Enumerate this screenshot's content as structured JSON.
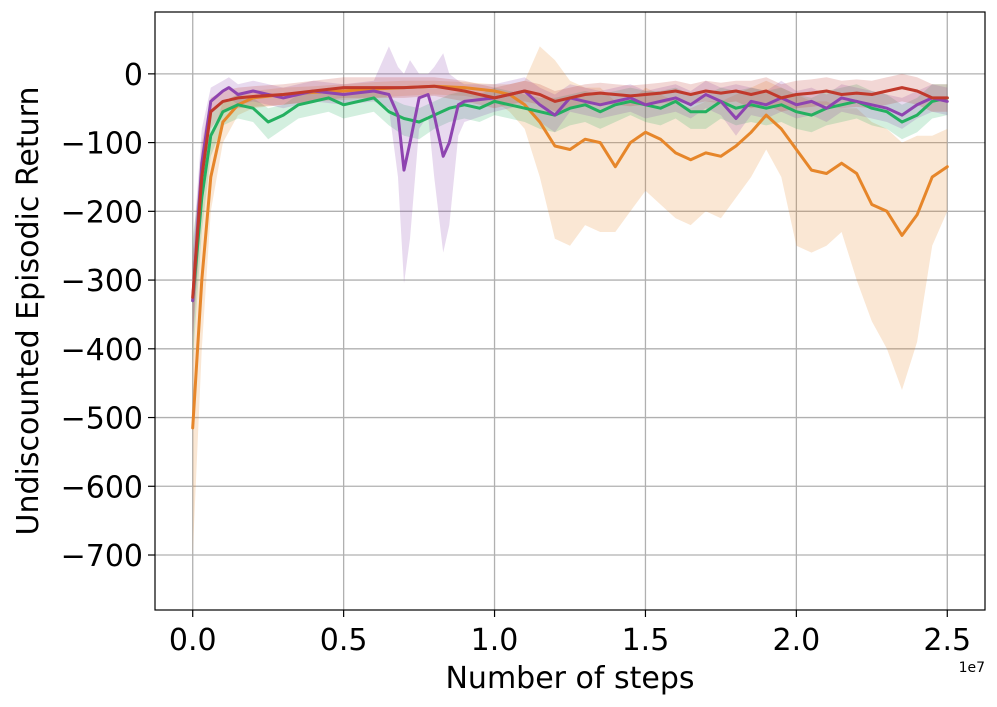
{
  "chart_data": {
    "type": "line",
    "xlabel": "Number of steps",
    "ylabel": "Undiscounted Episodic Return",
    "x_offset_label": "1e7",
    "xlim": [
      -0.125,
      2.625
    ],
    "ylim": [
      -780,
      90
    ],
    "xticks": [
      0.0,
      0.5,
      1.0,
      1.5,
      2.0,
      2.5
    ],
    "xtick_labels": [
      "0.0",
      "0.5",
      "1.0",
      "1.5",
      "2.0",
      "2.5"
    ],
    "yticks": [
      0,
      -100,
      -200,
      -300,
      -400,
      -500,
      -600,
      -700
    ],
    "ytick_labels": [
      "0",
      "−100",
      "−200",
      "−300",
      "−400",
      "−500",
      "−600",
      "−700"
    ],
    "grid": true,
    "series": [
      {
        "color": "#e6862a",
        "x": [
          0,
          0.03,
          0.06,
          0.1,
          0.15,
          0.2,
          0.3,
          0.4,
          0.5,
          0.6,
          0.7,
          0.8,
          0.9,
          1.0,
          1.05,
          1.1,
          1.15,
          1.2,
          1.25,
          1.3,
          1.35,
          1.4,
          1.45,
          1.5,
          1.55,
          1.6,
          1.65,
          1.7,
          1.75,
          1.8,
          1.85,
          1.9,
          1.95,
          2.0,
          2.05,
          2.1,
          2.15,
          2.2,
          2.25,
          2.3,
          2.35,
          2.4,
          2.45,
          2.5
        ],
        "y": [
          -515,
          -300,
          -150,
          -70,
          -45,
          -35,
          -30,
          -27,
          -25,
          -22,
          -20,
          -18,
          -20,
          -25,
          -30,
          -45,
          -70,
          -105,
          -110,
          -95,
          -100,
          -135,
          -100,
          -85,
          -95,
          -115,
          -125,
          -115,
          -120,
          -105,
          -85,
          -60,
          -80,
          -110,
          -140,
          -145,
          -130,
          -145,
          -190,
          -200,
          -235,
          -205,
          -150,
          -135
        ],
        "band": [
          [
            -700,
            -330
          ],
          [
            -400,
            -200
          ],
          [
            -200,
            -100
          ],
          [
            -100,
            -40
          ],
          [
            -60,
            -30
          ],
          [
            -50,
            -25
          ],
          [
            -45,
            -20
          ],
          [
            -40,
            -18
          ],
          [
            -38,
            -15
          ],
          [
            -35,
            -12
          ],
          [
            -32,
            -10
          ],
          [
            -30,
            -10
          ],
          [
            -32,
            -12
          ],
          [
            -40,
            -15
          ],
          [
            -55,
            -15
          ],
          [
            -80,
            -10
          ],
          [
            -150,
            40
          ],
          [
            -240,
            20
          ],
          [
            -250,
            -10
          ],
          [
            -220,
            -20
          ],
          [
            -230,
            -20
          ],
          [
            -230,
            -40
          ],
          [
            -200,
            -40
          ],
          [
            -170,
            -20
          ],
          [
            -190,
            -30
          ],
          [
            -210,
            -40
          ],
          [
            -220,
            -50
          ],
          [
            -200,
            -40
          ],
          [
            -210,
            -40
          ],
          [
            -180,
            -30
          ],
          [
            -150,
            -20
          ],
          [
            -110,
            -10
          ],
          [
            -150,
            -20
          ],
          [
            -250,
            -30
          ],
          [
            -260,
            -40
          ],
          [
            -250,
            -40
          ],
          [
            -230,
            -50
          ],
          [
            -300,
            -50
          ],
          [
            -360,
            -70
          ],
          [
            -400,
            -80
          ],
          [
            -460,
            -100
          ],
          [
            -390,
            -90
          ],
          [
            -250,
            -90
          ],
          [
            -200,
            -80
          ]
        ]
      },
      {
        "color": "#24b060",
        "x": [
          0,
          0.03,
          0.06,
          0.1,
          0.15,
          0.2,
          0.25,
          0.3,
          0.35,
          0.4,
          0.45,
          0.5,
          0.55,
          0.6,
          0.65,
          0.7,
          0.75,
          0.8,
          0.85,
          0.9,
          0.95,
          1.0,
          1.05,
          1.1,
          1.15,
          1.2,
          1.25,
          1.3,
          1.35,
          1.4,
          1.45,
          1.5,
          1.55,
          1.6,
          1.65,
          1.7,
          1.75,
          1.8,
          1.85,
          1.9,
          1.95,
          2.0,
          2.05,
          2.1,
          2.15,
          2.2,
          2.25,
          2.3,
          2.35,
          2.4,
          2.45,
          2.5
        ],
        "y": [
          -330,
          -180,
          -90,
          -55,
          -45,
          -50,
          -70,
          -60,
          -45,
          -40,
          -35,
          -45,
          -40,
          -35,
          -55,
          -65,
          -70,
          -60,
          -50,
          -45,
          -50,
          -40,
          -45,
          -50,
          -55,
          -60,
          -50,
          -45,
          -55,
          -45,
          -40,
          -45,
          -50,
          -40,
          -55,
          -55,
          -40,
          -50,
          -45,
          -50,
          -45,
          -55,
          -60,
          -50,
          -45,
          -40,
          -50,
          -55,
          -70,
          -60,
          -40,
          -35
        ],
        "band": [
          [
            -420,
            -240
          ],
          [
            -230,
            -130
          ],
          [
            -120,
            -60
          ],
          [
            -75,
            -40
          ],
          [
            -65,
            -30
          ],
          [
            -70,
            -35
          ],
          [
            -95,
            -50
          ],
          [
            -80,
            -45
          ],
          [
            -65,
            -30
          ],
          [
            -60,
            -25
          ],
          [
            -55,
            -20
          ],
          [
            -65,
            -30
          ],
          [
            -60,
            -25
          ],
          [
            -55,
            -20
          ],
          [
            -75,
            -35
          ],
          [
            -90,
            -45
          ],
          [
            -95,
            -50
          ],
          [
            -80,
            -40
          ],
          [
            -70,
            -30
          ],
          [
            -65,
            -25
          ],
          [
            -70,
            -30
          ],
          [
            -60,
            -20
          ],
          [
            -65,
            -25
          ],
          [
            -70,
            -30
          ],
          [
            -80,
            -35
          ],
          [
            -85,
            -35
          ],
          [
            -75,
            -30
          ],
          [
            -70,
            -25
          ],
          [
            -80,
            -30
          ],
          [
            -70,
            -25
          ],
          [
            -60,
            -20
          ],
          [
            -70,
            -25
          ],
          [
            -75,
            -25
          ],
          [
            -65,
            -20
          ],
          [
            -80,
            -30
          ],
          [
            -80,
            -30
          ],
          [
            -65,
            -20
          ],
          [
            -75,
            -25
          ],
          [
            -70,
            -20
          ],
          [
            -75,
            -25
          ],
          [
            -70,
            -20
          ],
          [
            -80,
            -30
          ],
          [
            -85,
            -35
          ],
          [
            -75,
            -25
          ],
          [
            -70,
            -20
          ],
          [
            -65,
            -15
          ],
          [
            -75,
            -25
          ],
          [
            -80,
            -30
          ],
          [
            -95,
            -45
          ],
          [
            -85,
            -35
          ],
          [
            -65,
            -15
          ],
          [
            -60,
            -15
          ]
        ]
      },
      {
        "color": "#8e44b0",
        "x": [
          0,
          0.03,
          0.06,
          0.1,
          0.12,
          0.15,
          0.2,
          0.3,
          0.4,
          0.5,
          0.6,
          0.65,
          0.68,
          0.7,
          0.72,
          0.75,
          0.78,
          0.8,
          0.83,
          0.85,
          0.88,
          0.9,
          1.0,
          1.05,
          1.1,
          1.15,
          1.2,
          1.25,
          1.3,
          1.35,
          1.4,
          1.45,
          1.5,
          1.55,
          1.6,
          1.65,
          1.7,
          1.75,
          1.8,
          1.85,
          1.9,
          1.95,
          2.0,
          2.05,
          2.1,
          2.15,
          2.2,
          2.25,
          2.3,
          2.35,
          2.4,
          2.45,
          2.5
        ],
        "y": [
          -330,
          -130,
          -40,
          -25,
          -20,
          -30,
          -25,
          -35,
          -25,
          -30,
          -25,
          -30,
          -60,
          -140,
          -100,
          -35,
          -30,
          -60,
          -120,
          -100,
          -45,
          -40,
          -35,
          -30,
          -25,
          -45,
          -60,
          -35,
          -40,
          -45,
          -40,
          -35,
          -45,
          -40,
          -35,
          -45,
          -30,
          -40,
          -65,
          -40,
          -45,
          -35,
          -45,
          -40,
          -50,
          -35,
          -40,
          -45,
          -50,
          -60,
          -45,
          -35,
          -40
        ],
        "band": [
          [
            -400,
            -260
          ],
          [
            -180,
            -80
          ],
          [
            -60,
            -20
          ],
          [
            -40,
            -10
          ],
          [
            -35,
            -5
          ],
          [
            -45,
            -15
          ],
          [
            -40,
            -10
          ],
          [
            -50,
            -20
          ],
          [
            -40,
            -10
          ],
          [
            -45,
            -15
          ],
          [
            -40,
            -10
          ],
          [
            -50,
            40
          ],
          [
            -150,
            10
          ],
          [
            -305,
            0
          ],
          [
            -240,
            20
          ],
          [
            -80,
            0
          ],
          [
            -60,
            0
          ],
          [
            -150,
            10
          ],
          [
            -260,
            30
          ],
          [
            -220,
            0
          ],
          [
            -90,
            -10
          ],
          [
            -70,
            -15
          ],
          [
            -55,
            -15
          ],
          [
            -50,
            -10
          ],
          [
            -45,
            -5
          ],
          [
            -70,
            -20
          ],
          [
            -85,
            -30
          ],
          [
            -55,
            -15
          ],
          [
            -60,
            -20
          ],
          [
            -65,
            -25
          ],
          [
            -60,
            -20
          ],
          [
            -55,
            -15
          ],
          [
            -65,
            -25
          ],
          [
            -60,
            -20
          ],
          [
            -55,
            -15
          ],
          [
            -65,
            -25
          ],
          [
            -50,
            -10
          ],
          [
            -60,
            -20
          ],
          [
            -90,
            -15
          ],
          [
            -60,
            -20
          ],
          [
            -65,
            -25
          ],
          [
            -55,
            -10
          ],
          [
            -65,
            -25
          ],
          [
            -60,
            -20
          ],
          [
            -70,
            -30
          ],
          [
            -55,
            -15
          ],
          [
            -60,
            -20
          ],
          [
            -65,
            -25
          ],
          [
            -70,
            -30
          ],
          [
            -80,
            -35
          ],
          [
            -65,
            -25
          ],
          [
            -55,
            -15
          ],
          [
            -60,
            -20
          ]
        ]
      },
      {
        "color": "#c0392b",
        "x": [
          0,
          0.03,
          0.06,
          0.1,
          0.15,
          0.2,
          0.3,
          0.4,
          0.5,
          0.6,
          0.7,
          0.8,
          0.9,
          0.95,
          1.0,
          1.05,
          1.1,
          1.15,
          1.2,
          1.25,
          1.3,
          1.35,
          1.4,
          1.45,
          1.5,
          1.55,
          1.6,
          1.65,
          1.7,
          1.75,
          1.8,
          1.85,
          1.9,
          1.95,
          2.0,
          2.05,
          2.1,
          2.15,
          2.2,
          2.25,
          2.3,
          2.35,
          2.4,
          2.45,
          2.5
        ],
        "y": [
          -325,
          -150,
          -55,
          -40,
          -35,
          -33,
          -30,
          -25,
          -20,
          -20,
          -20,
          -18,
          -25,
          -30,
          -35,
          -30,
          -25,
          -30,
          -40,
          -35,
          -30,
          -28,
          -30,
          -32,
          -30,
          -28,
          -25,
          -30,
          -25,
          -28,
          -25,
          -30,
          -25,
          -35,
          -30,
          -28,
          -25,
          -30,
          -28,
          -30,
          -25,
          -20,
          -25,
          -35,
          -35
        ],
        "band": [
          [
            -380,
            -270
          ],
          [
            -200,
            -100
          ],
          [
            -80,
            -35
          ],
          [
            -55,
            -25
          ],
          [
            -50,
            -20
          ],
          [
            -48,
            -18
          ],
          [
            -45,
            -15
          ],
          [
            -40,
            -10
          ],
          [
            -35,
            -5
          ],
          [
            -35,
            -5
          ],
          [
            -35,
            -5
          ],
          [
            -32,
            -5
          ],
          [
            -40,
            -10
          ],
          [
            -45,
            -15
          ],
          [
            -50,
            -20
          ],
          [
            -45,
            -15
          ],
          [
            -40,
            -10
          ],
          [
            -45,
            -15
          ],
          [
            -55,
            -25
          ],
          [
            -50,
            -20
          ],
          [
            -45,
            -15
          ],
          [
            -43,
            -13
          ],
          [
            -45,
            -15
          ],
          [
            -47,
            -17
          ],
          [
            -45,
            -15
          ],
          [
            -43,
            -13
          ],
          [
            -40,
            -10
          ],
          [
            -45,
            -15
          ],
          [
            -40,
            -10
          ],
          [
            -43,
            -13
          ],
          [
            -40,
            -10
          ],
          [
            -50,
            -10
          ],
          [
            -45,
            -5
          ],
          [
            -55,
            -15
          ],
          [
            -50,
            -10
          ],
          [
            -48,
            -8
          ],
          [
            -45,
            -5
          ],
          [
            -50,
            -10
          ],
          [
            -48,
            -8
          ],
          [
            -50,
            -10
          ],
          [
            -45,
            -5
          ],
          [
            -40,
            0
          ],
          [
            -45,
            -5
          ],
          [
            -55,
            -15
          ],
          [
            -55,
            -15
          ]
        ]
      }
    ]
  }
}
